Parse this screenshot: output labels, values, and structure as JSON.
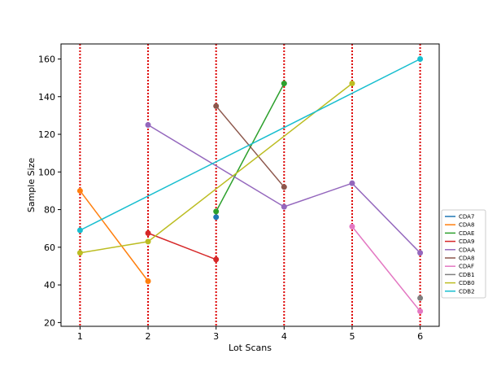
{
  "chart_data": {
    "type": "line",
    "title": "",
    "xlabel": "Lot Scans",
    "ylabel": "Sample Size",
    "xlim": [
      0.72,
      6.28
    ],
    "ylim": [
      18,
      168
    ],
    "xticks": [
      1,
      2,
      3,
      4,
      5,
      6
    ],
    "yticks": [
      20,
      40,
      60,
      80,
      100,
      120,
      140,
      160
    ],
    "grid": false,
    "vlines": {
      "x": [
        1,
        2,
        3,
        4,
        5,
        6
      ],
      "color": "#dd0000",
      "style": "dotted"
    },
    "legend": {
      "placement": "center-right"
    },
    "series": [
      {
        "name": "CDA7",
        "color": "#1f77b4",
        "points": [
          [
            3,
            76
          ]
        ]
      },
      {
        "name": "CDA8",
        "color": "#ff7f0e",
        "points": [
          [
            1,
            90
          ],
          [
            2,
            42
          ]
        ]
      },
      {
        "name": "CDAE",
        "color": "#2ca02c",
        "points": [
          [
            3,
            79
          ],
          [
            4,
            147
          ]
        ]
      },
      {
        "name": "CDA9",
        "color": "#d62728",
        "points": [
          [
            2,
            67.5
          ],
          [
            3,
            53.5
          ]
        ]
      },
      {
        "name": "CDAA",
        "color": "#9467bd",
        "points": [
          [
            2,
            125
          ],
          [
            4,
            81.5
          ],
          [
            5,
            94
          ],
          [
            6,
            57
          ]
        ]
      },
      {
        "name": "CDA8",
        "color": "#8c564b",
        "points": [
          [
            3,
            135
          ],
          [
            4,
            92
          ]
        ]
      },
      {
        "name": "CDAF",
        "color": "#e377c2",
        "points": [
          [
            5,
            71
          ],
          [
            6,
            26
          ]
        ]
      },
      {
        "name": "CDB1",
        "color": "#7f7f7f",
        "points": [
          [
            6,
            33
          ]
        ]
      },
      {
        "name": "CDB0",
        "color": "#bcbd22",
        "points": [
          [
            1,
            57
          ],
          [
            2,
            63
          ],
          [
            5,
            147
          ]
        ]
      },
      {
        "name": "CDB2",
        "color": "#17becf",
        "points": [
          [
            1,
            69
          ],
          [
            6,
            160
          ]
        ]
      }
    ]
  }
}
